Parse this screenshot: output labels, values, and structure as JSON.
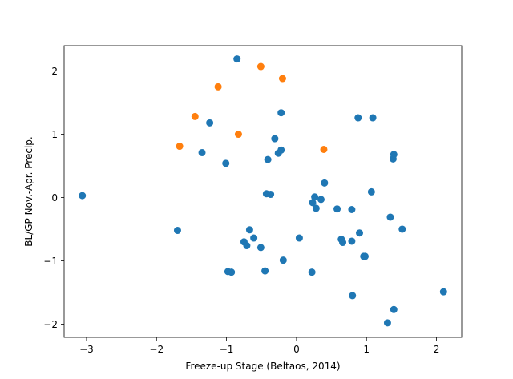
{
  "chart_data": {
    "type": "scatter",
    "title": "",
    "xlabel": "Freeze-up Stage (Beltaos, 2014)",
    "ylabel": "BL/GP Nov.-Apr. Precip.",
    "xlim": [
      -3.32,
      2.36
    ],
    "ylim": [
      -2.21,
      2.4
    ],
    "xticks": [
      -3,
      -2,
      -1,
      0,
      1,
      2
    ],
    "yticks": [
      -2,
      -1,
      0,
      1,
      2
    ],
    "xtick_labels": [
      "−3",
      "−2",
      "−1",
      "0",
      "1",
      "2"
    ],
    "ytick_labels": [
      "−2",
      "−1",
      "0",
      "1",
      "2"
    ],
    "grid": false,
    "legend": "none",
    "series": [
      {
        "color": "#1f77b4",
        "points": [
          [
            -3.06,
            0.03
          ],
          [
            -1.7,
            -0.52
          ],
          [
            -1.35,
            0.71
          ],
          [
            -1.24,
            1.18
          ],
          [
            -1.01,
            0.54
          ],
          [
            -0.98,
            -1.17
          ],
          [
            -0.93,
            -1.18
          ],
          [
            -0.85,
            2.19
          ],
          [
            -0.75,
            -0.7
          ],
          [
            -0.71,
            -0.76
          ],
          [
            -0.67,
            -0.51
          ],
          [
            -0.61,
            -0.64
          ],
          [
            -0.51,
            -0.79
          ],
          [
            -0.45,
            -1.16
          ],
          [
            -0.43,
            0.06
          ],
          [
            -0.41,
            0.6
          ],
          [
            -0.37,
            0.05
          ],
          [
            -0.31,
            0.93
          ],
          [
            -0.26,
            0.7
          ],
          [
            -0.22,
            0.75
          ],
          [
            -0.22,
            1.34
          ],
          [
            -0.19,
            -0.99
          ],
          [
            0.04,
            -0.64
          ],
          [
            0.22,
            -1.18
          ],
          [
            0.23,
            -0.08
          ],
          [
            0.26,
            0.01
          ],
          [
            0.28,
            -0.17
          ],
          [
            0.35,
            -0.03
          ],
          [
            0.4,
            0.23
          ],
          [
            0.58,
            -0.18
          ],
          [
            0.64,
            -0.66
          ],
          [
            0.66,
            -0.71
          ],
          [
            0.79,
            -0.19
          ],
          [
            0.79,
            -0.69
          ],
          [
            0.8,
            -1.55
          ],
          [
            0.88,
            1.26
          ],
          [
            0.9,
            -0.56
          ],
          [
            0.96,
            -0.93
          ],
          [
            0.98,
            -0.93
          ],
          [
            1.07,
            0.09
          ],
          [
            1.09,
            1.26
          ],
          [
            1.3,
            -1.98
          ],
          [
            1.34,
            -0.31
          ],
          [
            1.38,
            0.61
          ],
          [
            1.39,
            0.68
          ],
          [
            1.39,
            -1.77
          ],
          [
            1.51,
            -0.5
          ],
          [
            2.1,
            -1.49
          ]
        ]
      },
      {
        "color": "#ff7f0e",
        "points": [
          [
            -1.67,
            0.81
          ],
          [
            -1.45,
            1.28
          ],
          [
            -1.12,
            1.75
          ],
          [
            -0.83,
            1.0
          ],
          [
            -0.51,
            2.07
          ],
          [
            -0.2,
            1.88
          ],
          [
            0.39,
            0.76
          ]
        ]
      }
    ]
  }
}
